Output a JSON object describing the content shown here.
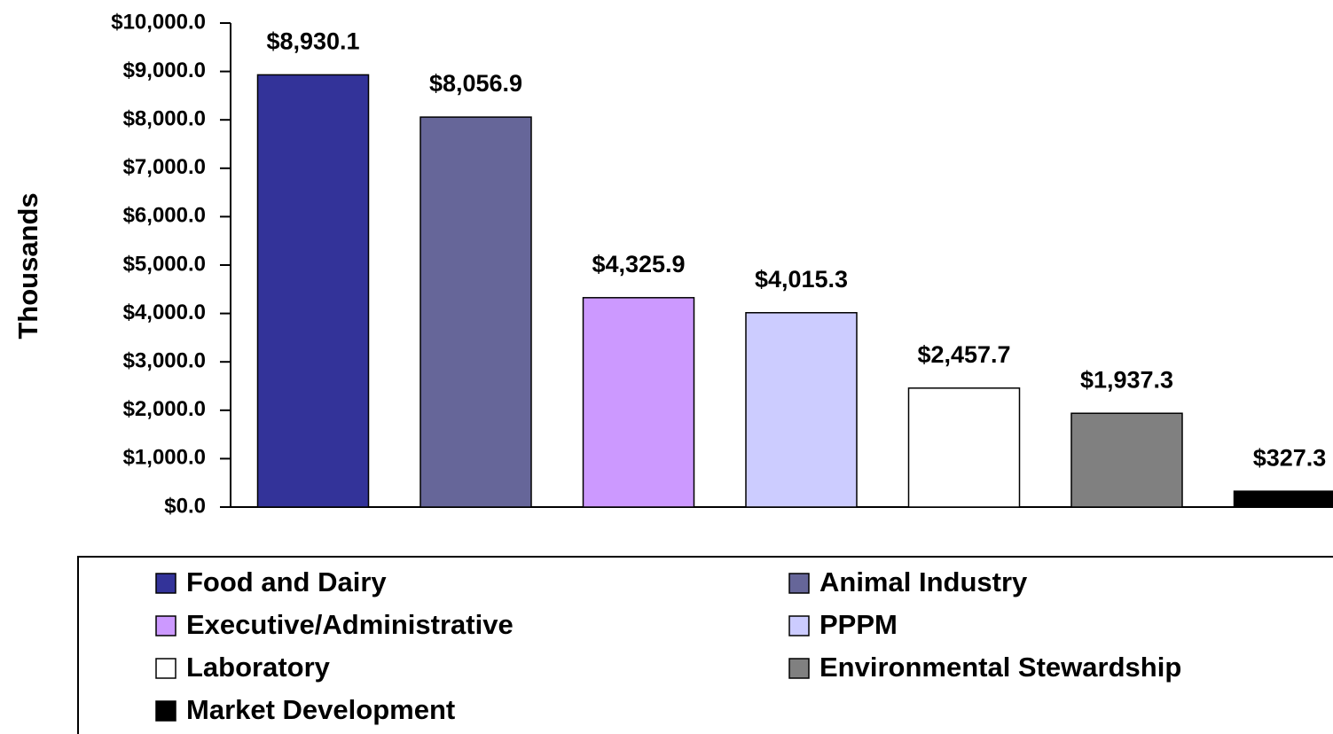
{
  "chart_data": {
    "type": "bar",
    "y_label": "Thousands",
    "ylim": [
      0,
      10000
    ],
    "yticks": [
      {
        "value": 0,
        "label": "$0.0"
      },
      {
        "value": 1000,
        "label": "$1,000.0"
      },
      {
        "value": 2000,
        "label": "$2,000.0"
      },
      {
        "value": 3000,
        "label": "$3,000.0"
      },
      {
        "value": 4000,
        "label": "$4,000.0"
      },
      {
        "value": 5000,
        "label": "$5,000.0"
      },
      {
        "value": 6000,
        "label": "$6,000.0"
      },
      {
        "value": 7000,
        "label": "$7,000.0"
      },
      {
        "value": 8000,
        "label": "$8,000.0"
      },
      {
        "value": 9000,
        "label": "$9,000.0"
      },
      {
        "value": 10000,
        "label": "$10,000.0"
      }
    ],
    "grid": false,
    "legend": "bottom",
    "series": [
      {
        "name": "Food and Dairy",
        "color": "#333399",
        "values": [
          8930.1
        ],
        "value_labels": [
          "$8,930.1"
        ]
      },
      {
        "name": "Animal Industry",
        "color": "#666699",
        "values": [
          8056.9
        ],
        "value_labels": [
          "$8,056.9"
        ]
      },
      {
        "name": "Executive/Administrative",
        "color": "#cc99ff",
        "values": [
          4325.9
        ],
        "value_labels": [
          "$4,325.9"
        ]
      },
      {
        "name": "PPPM",
        "color": "#ccccff",
        "values": [
          4015.3
        ],
        "value_labels": [
          "$4,015.3"
        ]
      },
      {
        "name": "Laboratory",
        "color": "#ffffff",
        "values": [
          2457.7
        ],
        "value_labels": [
          "$2,457.7"
        ]
      },
      {
        "name": "Environmental Stewardship",
        "color": "#808080",
        "values": [
          1937.3
        ],
        "value_labels": [
          "$1,937.3"
        ]
      },
      {
        "name": "Market Development",
        "color": "#000000",
        "values": [
          327.3
        ],
        "value_labels": [
          "$327.3"
        ]
      }
    ]
  }
}
